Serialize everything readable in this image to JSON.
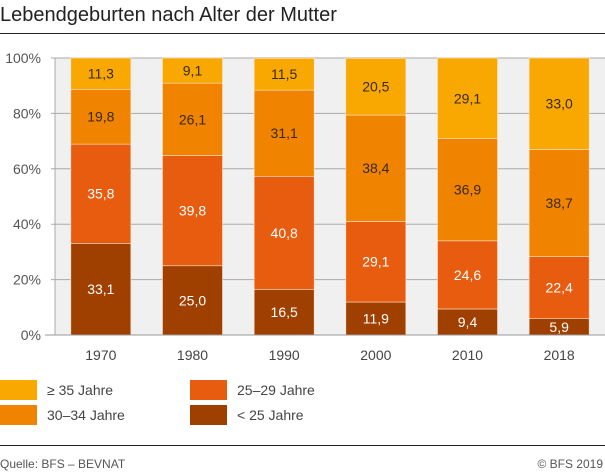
{
  "title": "Lebendgeburten nach Alter der Mutter",
  "chart_data": {
    "type": "stacked-bar",
    "categories": [
      "1970",
      "1980",
      "1990",
      "2000",
      "2010",
      "2018"
    ],
    "ylim": [
      0,
      100
    ],
    "yticks": [
      "0%",
      "20%",
      "40%",
      "60%",
      "80%",
      "100%"
    ],
    "series": [
      {
        "name": "< 25 Jahre",
        "color": "#a04000",
        "values": [
          33.1,
          25.0,
          16.5,
          11.9,
          9.4,
          5.9
        ],
        "labels": [
          "33,1",
          "25,0",
          "16,5",
          "11,9",
          "9,4",
          "5,9"
        ],
        "label_color": "#ffffff"
      },
      {
        "name": "25–29 Jahre",
        "color": "#e85c10",
        "values": [
          35.8,
          39.8,
          40.8,
          29.1,
          24.6,
          22.4
        ],
        "labels": [
          "35,8",
          "39,8",
          "40,8",
          "29,1",
          "24,6",
          "22,4"
        ],
        "label_color": "#ffffff"
      },
      {
        "name": "30–34 Jahre",
        "color": "#f08300",
        "values": [
          19.8,
          26.1,
          31.1,
          38.4,
          36.9,
          38.7
        ],
        "labels": [
          "19,8",
          "26,1",
          "31,1",
          "38,4",
          "36,9",
          "38,7"
        ],
        "label_color": "#3a2a10"
      },
      {
        "name": "≥ 35 Jahre",
        "color": "#f8a800",
        "values": [
          11.3,
          9.1,
          11.5,
          20.5,
          29.1,
          33.0
        ],
        "labels": [
          "11,3",
          "9,1",
          "11,5",
          "20,5",
          "29,1",
          "33,0"
        ],
        "label_color": "#3a2a10"
      }
    ],
    "grid": true,
    "legend_position": "bottom"
  },
  "source": "Quelle: BFS – BEVNAT",
  "copyright": "© BFS 2019"
}
